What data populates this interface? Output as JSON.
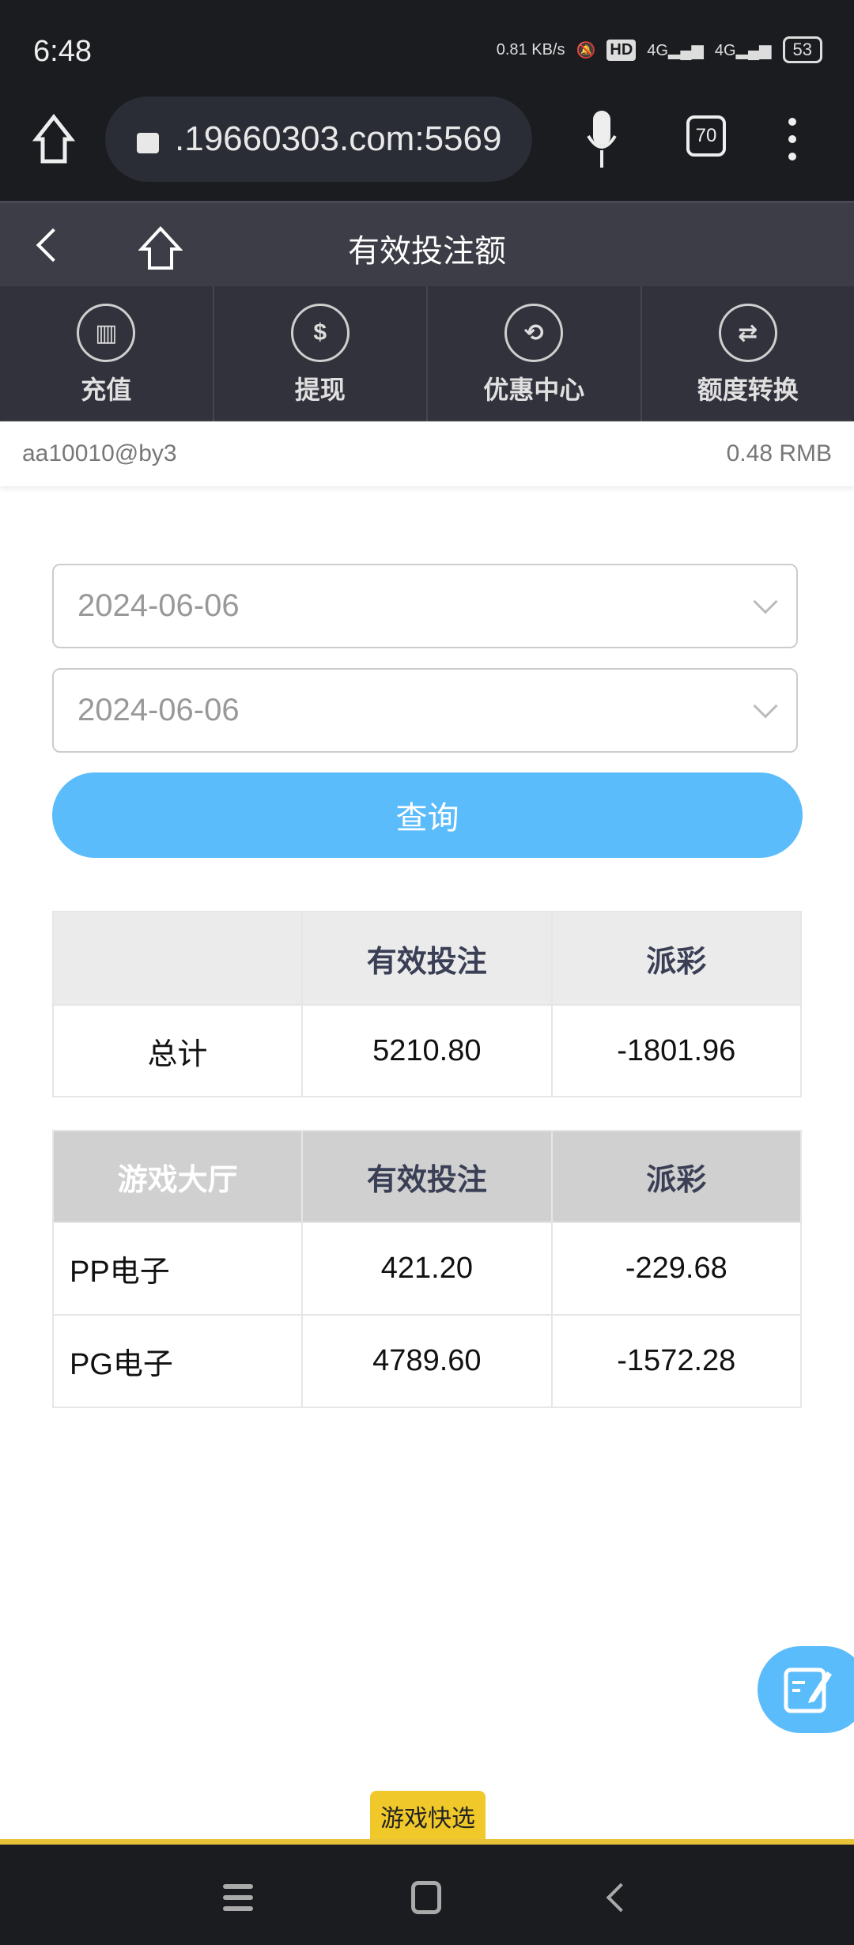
{
  "status_bar": {
    "time": "6:48",
    "net_speed": "0.81 KB/s",
    "hd": "HD",
    "signal1": "4G",
    "signal2": "4G",
    "battery": "53"
  },
  "browser": {
    "url": ".19660303.com:5569",
    "tabs_count": "70"
  },
  "header": {
    "title": "有效投注额"
  },
  "nav": [
    {
      "label": "充值",
      "icon": "deposit-icon"
    },
    {
      "label": "提现",
      "icon": "withdraw-icon"
    },
    {
      "label": "优惠中心",
      "icon": "promo-icon"
    },
    {
      "label": "额度转换",
      "icon": "transfer-icon"
    }
  ],
  "user": {
    "name": "aa10010@by3",
    "balance": "0.48 RMB"
  },
  "filters": {
    "start_date": "2024-06-06",
    "end_date": "2024-06-06",
    "query_label": "查询"
  },
  "summary": {
    "headers": [
      "",
      "有效投注",
      "派彩"
    ],
    "rows": [
      [
        "总计",
        "5210.80",
        "-1801.96"
      ]
    ]
  },
  "detail": {
    "headers": [
      "游戏大厅",
      "有效投注",
      "派彩"
    ],
    "rows": [
      [
        "PP电子",
        "421.20",
        "-229.68"
      ],
      [
        "PG电子",
        "4789.60",
        "-1572.28"
      ]
    ]
  },
  "quick_select": "游戏快选",
  "colors": {
    "accent": "#5bbcfb",
    "quick": "#f0c829"
  }
}
